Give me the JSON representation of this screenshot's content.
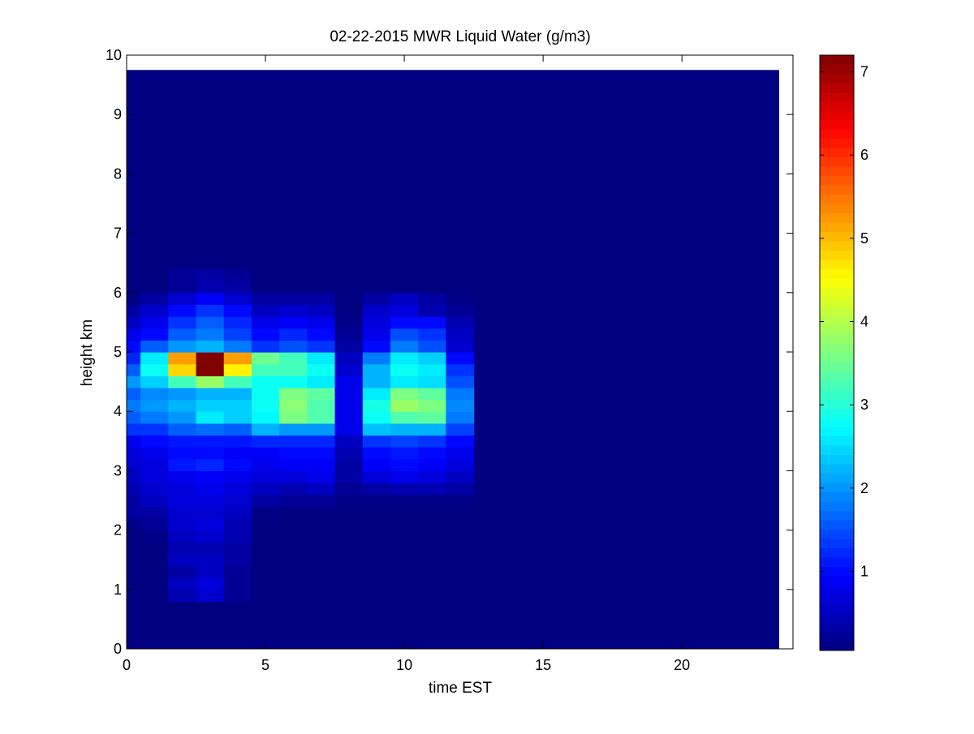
{
  "chart_data": {
    "type": "heatmap",
    "title": "02-22-2015 MWR Liquid Water (g/m3)",
    "xlabel": "time EST",
    "ylabel": "height km",
    "xlim": [
      0,
      24
    ],
    "ylim": [
      0,
      10
    ],
    "x_ticks": [
      0,
      5,
      10,
      15,
      20
    ],
    "y_ticks": [
      0,
      1,
      2,
      3,
      4,
      5,
      6,
      7,
      8,
      9,
      10
    ],
    "colorbar": {
      "range": [
        0.05,
        7.2
      ],
      "ticks": [
        1,
        2,
        3,
        4,
        5,
        6,
        7
      ],
      "colormap": "jet"
    },
    "data_extent": {
      "x": [
        0,
        23.5
      ],
      "y": [
        0,
        9.75
      ]
    },
    "time_bins": [
      {
        "x0": 0,
        "x1": 0.5
      },
      {
        "x0": 0.5,
        "x1": 1.5
      },
      {
        "x0": 1.5,
        "x1": 2.5
      },
      {
        "x0": 2.5,
        "x1": 3.5
      },
      {
        "x0": 3.5,
        "x1": 4.5
      },
      {
        "x0": 4.5,
        "x1": 5.5
      },
      {
        "x0": 5.5,
        "x1": 6.5
      },
      {
        "x0": 6.5,
        "x1": 7.5
      },
      {
        "x0": 7.5,
        "x1": 8.5
      },
      {
        "x0": 8.5,
        "x1": 9.5
      },
      {
        "x0": 9.5,
        "x1": 10.5
      },
      {
        "x0": 10.5,
        "x1": 11.5
      },
      {
        "x0": 11.5,
        "x1": 12.5
      }
    ],
    "height_bins": [
      {
        "y0": 0.8,
        "y1": 1.0
      },
      {
        "y0": 1.0,
        "y1": 1.2
      },
      {
        "y0": 1.2,
        "y1": 1.4
      },
      {
        "y0": 1.4,
        "y1": 1.6
      },
      {
        "y0": 1.6,
        "y1": 1.8
      },
      {
        "y0": 1.8,
        "y1": 2.0
      },
      {
        "y0": 2.0,
        "y1": 2.2
      },
      {
        "y0": 2.2,
        "y1": 2.4
      },
      {
        "y0": 2.4,
        "y1": 2.6
      },
      {
        "y0": 2.6,
        "y1": 2.8
      },
      {
        "y0": 2.8,
        "y1": 3.0
      },
      {
        "y0": 3.0,
        "y1": 3.2
      },
      {
        "y0": 3.2,
        "y1": 3.4
      },
      {
        "y0": 3.4,
        "y1": 3.6
      },
      {
        "y0": 3.6,
        "y1": 3.8
      },
      {
        "y0": 3.8,
        "y1": 4.0
      },
      {
        "y0": 4.0,
        "y1": 4.2
      },
      {
        "y0": 4.2,
        "y1": 4.4
      },
      {
        "y0": 4.4,
        "y1": 4.6
      },
      {
        "y0": 4.6,
        "y1": 4.8
      },
      {
        "y0": 4.8,
        "y1": 5.0
      },
      {
        "y0": 5.0,
        "y1": 5.2
      },
      {
        "y0": 5.2,
        "y1": 5.4
      },
      {
        "y0": 5.4,
        "y1": 5.6
      },
      {
        "y0": 5.6,
        "y1": 5.8
      },
      {
        "y0": 5.8,
        "y1": 6.0
      },
      {
        "y0": 6.0,
        "y1": 6.2
      },
      {
        "y0": 6.2,
        "y1": 6.4
      }
    ],
    "values": [
      [
        0.05,
        0.05,
        0.4,
        0.6,
        0.2,
        0.05,
        0.05,
        0.05,
        0.05,
        0.05,
        0.05,
        0.05,
        0.05
      ],
      [
        0.05,
        0.05,
        0.5,
        0.7,
        0.2,
        0.05,
        0.05,
        0.05,
        0.05,
        0.05,
        0.05,
        0.05,
        0.05
      ],
      [
        0.05,
        0.05,
        0.3,
        0.5,
        0.2,
        0.05,
        0.05,
        0.05,
        0.05,
        0.05,
        0.05,
        0.05,
        0.05
      ],
      [
        0.05,
        0.05,
        0.5,
        0.5,
        0.3,
        0.05,
        0.05,
        0.05,
        0.05,
        0.05,
        0.05,
        0.05,
        0.05
      ],
      [
        0.05,
        0.05,
        0.4,
        0.4,
        0.3,
        0.05,
        0.05,
        0.05,
        0.05,
        0.05,
        0.05,
        0.05,
        0.05
      ],
      [
        0.05,
        0.1,
        0.5,
        0.6,
        0.4,
        0.05,
        0.05,
        0.05,
        0.05,
        0.05,
        0.05,
        0.05,
        0.05
      ],
      [
        0.1,
        0.2,
        0.6,
        0.7,
        0.4,
        0.05,
        0.05,
        0.05,
        0.05,
        0.05,
        0.05,
        0.05,
        0.05
      ],
      [
        0.3,
        0.3,
        0.6,
        0.6,
        0.5,
        0.1,
        0.05,
        0.05,
        0.05,
        0.05,
        0.05,
        0.05,
        0.05
      ],
      [
        0.3,
        0.5,
        0.7,
        0.7,
        0.6,
        0.3,
        0.2,
        0.2,
        0.1,
        0.1,
        0.1,
        0.1,
        0.1
      ],
      [
        0.4,
        0.6,
        0.7,
        0.8,
        0.7,
        0.5,
        0.4,
        0.5,
        0.2,
        0.3,
        0.4,
        0.4,
        0.3
      ],
      [
        0.5,
        0.7,
        0.8,
        0.9,
        0.8,
        0.7,
        0.7,
        0.8,
        0.3,
        0.7,
        0.8,
        0.7,
        0.5
      ],
      [
        0.6,
        0.7,
        1.1,
        1.2,
        1.0,
        0.8,
        0.9,
        0.9,
        0.3,
        0.9,
        1.0,
        0.9,
        0.7
      ],
      [
        0.7,
        0.8,
        1.0,
        1.0,
        0.9,
        0.9,
        1.0,
        1.0,
        0.4,
        1.0,
        1.1,
        1.0,
        0.8
      ],
      [
        0.8,
        1.0,
        1.1,
        1.1,
        1.1,
        1.2,
        1.2,
        1.2,
        0.5,
        1.3,
        1.4,
        1.3,
        1.0
      ],
      [
        1.3,
        1.3,
        1.6,
        1.7,
        1.6,
        2.2,
        2.0,
        2.0,
        0.8,
        2.3,
        2.2,
        2.2,
        1.4
      ],
      [
        1.6,
        1.8,
        2.0,
        2.6,
        2.4,
        2.7,
        3.6,
        3.3,
        0.8,
        2.8,
        3.3,
        3.4,
        1.8
      ],
      [
        1.8,
        2.0,
        2.2,
        2.4,
        2.4,
        2.8,
        3.7,
        3.3,
        0.8,
        2.9,
        3.8,
        3.6,
        1.9
      ],
      [
        1.6,
        1.9,
        2.0,
        2.2,
        2.2,
        2.8,
        3.6,
        3.4,
        0.8,
        2.6,
        3.6,
        3.4,
        1.8
      ],
      [
        2.0,
        2.4,
        3.2,
        3.8,
        3.2,
        2.8,
        2.8,
        2.6,
        0.8,
        2.2,
        2.6,
        2.5,
        1.5
      ],
      [
        1.6,
        2.8,
        4.8,
        7.2,
        4.6,
        3.2,
        3.2,
        2.8,
        0.6,
        2.2,
        2.8,
        2.6,
        1.3
      ],
      [
        1.2,
        2.6,
        5.2,
        7.2,
        5.2,
        3.5,
        3.2,
        2.6,
        0.5,
        1.8,
        2.6,
        2.4,
        1.0
      ],
      [
        1.0,
        1.6,
        2.0,
        2.2,
        1.8,
        1.3,
        1.5,
        1.3,
        0.3,
        1.0,
        1.8,
        1.5,
        0.6
      ],
      [
        0.8,
        1.0,
        1.6,
        1.8,
        1.4,
        1.0,
        1.2,
        1.0,
        0.2,
        0.8,
        1.5,
        1.3,
        0.5
      ],
      [
        0.5,
        0.8,
        1.3,
        1.6,
        1.2,
        0.8,
        0.9,
        0.8,
        0.1,
        0.7,
        1.0,
        1.0,
        0.4
      ],
      [
        0.3,
        0.6,
        1.0,
        1.3,
        1.0,
        0.5,
        0.6,
        0.5,
        0.05,
        0.6,
        0.7,
        0.4,
        0.2
      ],
      [
        0.1,
        0.3,
        0.6,
        0.9,
        0.6,
        0.3,
        0.3,
        0.3,
        0.05,
        0.3,
        0.5,
        0.3,
        0.1
      ],
      [
        0.05,
        0.05,
        0.2,
        0.4,
        0.3,
        0.05,
        0.05,
        0.05,
        0.05,
        0.05,
        0.05,
        0.05,
        0.05
      ],
      [
        0.05,
        0.05,
        0.2,
        0.3,
        0.2,
        0.05,
        0.05,
        0.05,
        0.05,
        0.05,
        0.05,
        0.05,
        0.05
      ]
    ]
  }
}
